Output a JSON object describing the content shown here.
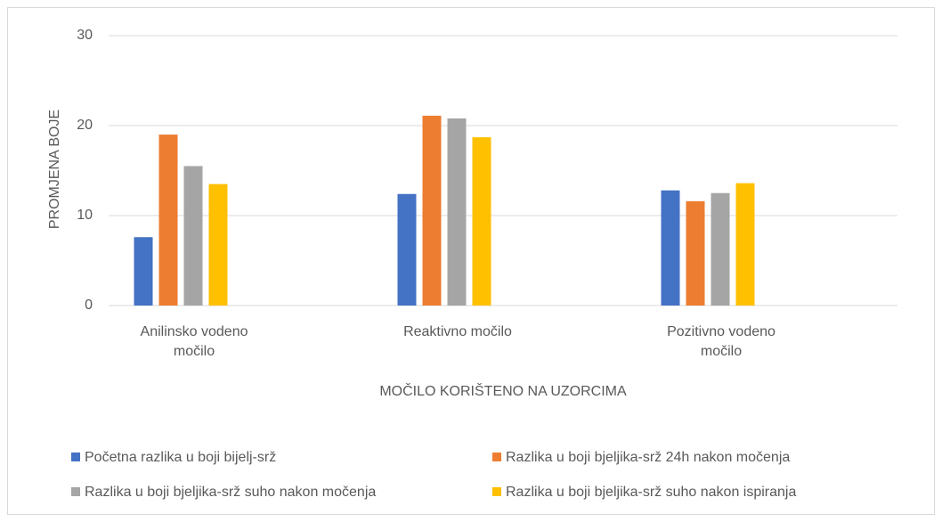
{
  "chart_data": {
    "type": "bar",
    "xlabel": "MOČILO KORIŠTENO NA UZORCIMA",
    "ylabel": "PROMJENA BOJE",
    "categories": [
      "Anilinsko vodeno močilo",
      "Reaktivno močilo",
      "Pozitivno vodeno močilo"
    ],
    "series": [
      {
        "name": "Početna razlika u boji bijelj-srž",
        "color": "#4472c4",
        "values": [
          7.6,
          12.4,
          12.8
        ]
      },
      {
        "name": "Razlika u boji bjeljika-srž 24h nakon močenja",
        "color": "#ed7d31",
        "values": [
          19,
          21.1,
          11.6
        ]
      },
      {
        "name": "Razlika u boji bjeljika-srž suho nakon močenja",
        "color": "#a5a5a5",
        "values": [
          15.5,
          20.8,
          12.5
        ]
      },
      {
        "name": "Razlika u boji bjeljika-srž suho nakon ispiranja",
        "color": "#ffc000",
        "values": [
          13.5,
          18.7,
          13.6
        ]
      }
    ],
    "ylim": [
      0,
      30
    ],
    "yticks": [
      0,
      10,
      20,
      30
    ],
    "grid": true,
    "legend": "bottom"
  }
}
